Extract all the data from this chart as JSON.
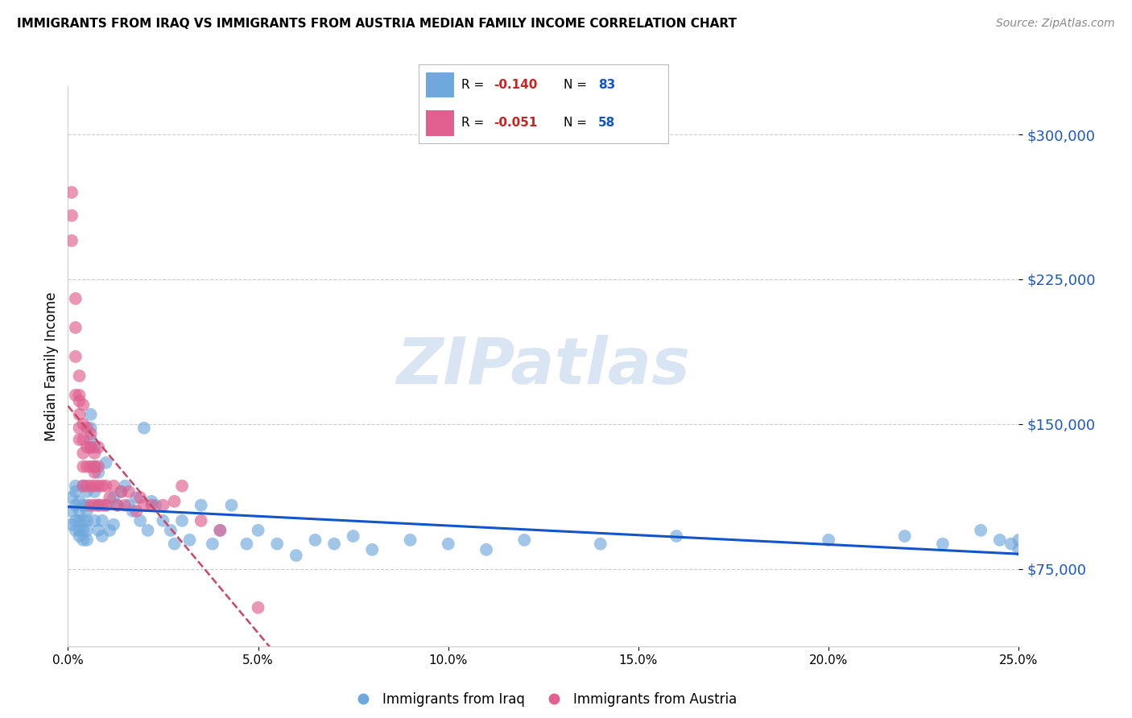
{
  "title": "IMMIGRANTS FROM IRAQ VS IMMIGRANTS FROM AUSTRIA MEDIAN FAMILY INCOME CORRELATION CHART",
  "source": "Source: ZipAtlas.com",
  "ylabel": "Median Family Income",
  "yticks": [
    75000,
    150000,
    225000,
    300000
  ],
  "ytick_labels": [
    "$75,000",
    "$150,000",
    "$225,000",
    "$300,000"
  ],
  "xlim": [
    0.0,
    0.25
  ],
  "ylim": [
    35000,
    325000
  ],
  "iraq_color": "#6fa8dc",
  "austria_color": "#e06090",
  "iraq_line_color": "#1155cc",
  "austria_line_color": "#cc4466",
  "iraq_R": -0.14,
  "iraq_N": 83,
  "austria_R": -0.051,
  "austria_N": 58,
  "legend_label_iraq": "Immigrants from Iraq",
  "legend_label_austria": "Immigrants from Austria",
  "watermark": "ZIPatlas",
  "iraq_x": [
    0.001,
    0.001,
    0.001,
    0.002,
    0.002,
    0.002,
    0.002,
    0.002,
    0.003,
    0.003,
    0.003,
    0.003,
    0.003,
    0.004,
    0.004,
    0.004,
    0.004,
    0.004,
    0.005,
    0.005,
    0.005,
    0.005,
    0.005,
    0.005,
    0.006,
    0.006,
    0.006,
    0.007,
    0.007,
    0.007,
    0.007,
    0.008,
    0.008,
    0.008,
    0.009,
    0.009,
    0.01,
    0.01,
    0.011,
    0.012,
    0.012,
    0.013,
    0.014,
    0.015,
    0.016,
    0.017,
    0.018,
    0.019,
    0.02,
    0.021,
    0.022,
    0.023,
    0.025,
    0.027,
    0.028,
    0.03,
    0.032,
    0.035,
    0.038,
    0.04,
    0.043,
    0.047,
    0.05,
    0.055,
    0.06,
    0.065,
    0.07,
    0.075,
    0.08,
    0.09,
    0.1,
    0.11,
    0.12,
    0.14,
    0.16,
    0.2,
    0.22,
    0.23,
    0.24,
    0.245,
    0.248,
    0.25,
    0.25
  ],
  "iraq_y": [
    105000,
    112000,
    98000,
    108000,
    115000,
    100000,
    95000,
    118000,
    105000,
    110000,
    95000,
    100000,
    92000,
    108000,
    118000,
    95000,
    100000,
    90000,
    108000,
    115000,
    100000,
    95000,
    90000,
    105000,
    148000,
    155000,
    142000,
    138000,
    128000,
    115000,
    100000,
    125000,
    108000,
    95000,
    100000,
    92000,
    130000,
    108000,
    95000,
    112000,
    98000,
    108000,
    115000,
    118000,
    108000,
    105000,
    112000,
    100000,
    148000,
    95000,
    110000,
    108000,
    100000,
    95000,
    88000,
    100000,
    90000,
    108000,
    88000,
    95000,
    108000,
    88000,
    95000,
    88000,
    82000,
    90000,
    88000,
    92000,
    85000,
    90000,
    88000,
    85000,
    90000,
    88000,
    92000,
    90000,
    92000,
    88000,
    95000,
    90000,
    88000,
    85000,
    90000
  ],
  "austria_x": [
    0.001,
    0.001,
    0.001,
    0.002,
    0.002,
    0.002,
    0.002,
    0.003,
    0.003,
    0.003,
    0.003,
    0.003,
    0.003,
    0.004,
    0.004,
    0.004,
    0.004,
    0.004,
    0.004,
    0.005,
    0.005,
    0.005,
    0.005,
    0.006,
    0.006,
    0.006,
    0.006,
    0.006,
    0.006,
    0.007,
    0.007,
    0.007,
    0.007,
    0.007,
    0.008,
    0.008,
    0.008,
    0.008,
    0.009,
    0.009,
    0.01,
    0.01,
    0.011,
    0.012,
    0.013,
    0.014,
    0.015,
    0.016,
    0.018,
    0.019,
    0.02,
    0.022,
    0.025,
    0.028,
    0.03,
    0.035,
    0.04,
    0.05
  ],
  "austria_y": [
    270000,
    258000,
    245000,
    215000,
    200000,
    185000,
    165000,
    175000,
    162000,
    155000,
    148000,
    165000,
    142000,
    160000,
    150000,
    142000,
    135000,
    128000,
    118000,
    148000,
    138000,
    128000,
    118000,
    145000,
    138000,
    128000,
    118000,
    108000,
    138000,
    135000,
    125000,
    118000,
    108000,
    128000,
    138000,
    128000,
    118000,
    108000,
    118000,
    108000,
    118000,
    108000,
    112000,
    118000,
    108000,
    115000,
    108000,
    115000,
    105000,
    112000,
    108000,
    108000,
    108000,
    110000,
    118000,
    100000,
    95000,
    55000
  ]
}
